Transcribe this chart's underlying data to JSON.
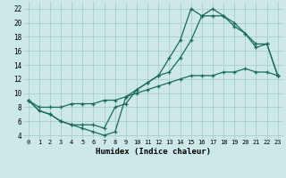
{
  "xlabel": "Humidex (Indice chaleur)",
  "xlim": [
    -0.5,
    23.5
  ],
  "ylim": [
    3.5,
    23.0
  ],
  "xticks": [
    0,
    1,
    2,
    3,
    4,
    5,
    6,
    7,
    8,
    9,
    10,
    11,
    12,
    13,
    14,
    15,
    16,
    17,
    18,
    19,
    20,
    21,
    22,
    23
  ],
  "yticks": [
    4,
    6,
    8,
    10,
    12,
    14,
    16,
    18,
    20,
    22
  ],
  "bg_color": "#cce8e8",
  "grid_color": "#aacccc",
  "line_color": "#1a6b5a",
  "line1_x": [
    0,
    1,
    2,
    3,
    4,
    5,
    6,
    7,
    8,
    9,
    10,
    11,
    12,
    13,
    14,
    15,
    16,
    17,
    18,
    19,
    20,
    21,
    22,
    23
  ],
  "line1_y": [
    9.0,
    7.5,
    7.0,
    6.0,
    5.5,
    5.0,
    4.5,
    4.0,
    4.5,
    9.5,
    10.5,
    11.5,
    12.5,
    15.0,
    17.5,
    22.0,
    21.0,
    22.0,
    21.0,
    19.5,
    18.5,
    16.5,
    17.0,
    12.5
  ],
  "line2_x": [
    0,
    1,
    2,
    3,
    4,
    5,
    6,
    7,
    8,
    9,
    10,
    11,
    12,
    13,
    14,
    15,
    16,
    17,
    18,
    19,
    20,
    21,
    22,
    23
  ],
  "line2_y": [
    9.0,
    7.5,
    7.0,
    6.0,
    5.5,
    5.5,
    5.5,
    5.0,
    8.0,
    8.5,
    10.5,
    11.5,
    12.5,
    13.0,
    15.0,
    17.5,
    21.0,
    21.0,
    21.0,
    20.0,
    18.5,
    17.0,
    17.0,
    12.5
  ],
  "line3_x": [
    0,
    1,
    2,
    3,
    4,
    5,
    6,
    7,
    8,
    9,
    10,
    11,
    12,
    13,
    14,
    15,
    16,
    17,
    18,
    19,
    20,
    21,
    22,
    23
  ],
  "line3_y": [
    9.0,
    8.0,
    8.0,
    8.0,
    8.5,
    8.5,
    8.5,
    9.0,
    9.0,
    9.5,
    10.0,
    10.5,
    11.0,
    11.5,
    12.0,
    12.5,
    12.5,
    12.5,
    13.0,
    13.0,
    13.5,
    13.0,
    13.0,
    12.5
  ]
}
